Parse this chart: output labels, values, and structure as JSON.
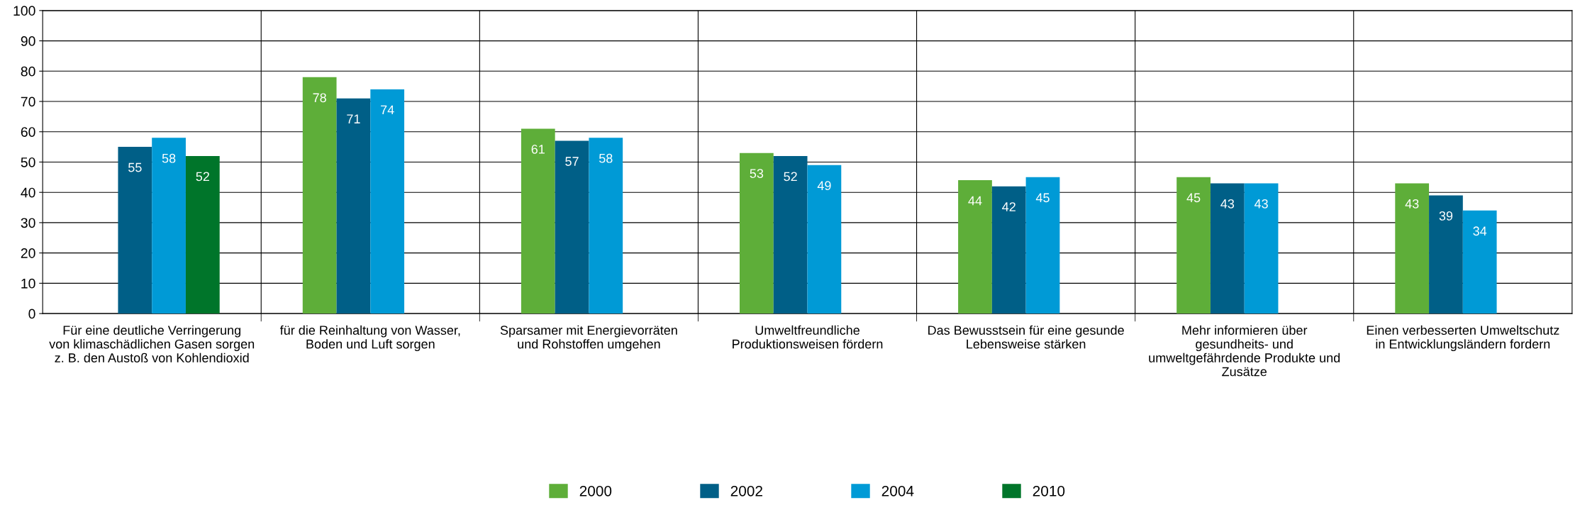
{
  "chart_data": {
    "type": "bar",
    "categories": [
      "Für eine deutliche Verringerung\nvon klimaschädlichen Gasen sorgen\nz. B. den Austoß von Kohlendioxid",
      "für die Reinhaltung von Wasser,\nBoden und Luft sorgen",
      "Sparsamer mit Energievorräten\nund Rohstoffen umgehen",
      "Umweltfreundliche\nProduktionsweisen fördern",
      "Das Bewusstsein für eine gesunde\nLebensweise stärken",
      "Mehr informieren über\ngesundheits- und\numweltgefährdende Produkte und\nZusätze",
      "Einen verbesserten Umweltschutz\nin Entwicklungsländern fordern"
    ],
    "series": [
      {
        "name": "2000",
        "color": "#5eae39",
        "values": [
          null,
          78,
          61,
          53,
          44,
          45,
          43
        ]
      },
      {
        "name": "2002",
        "color": "#005f87",
        "values": [
          55,
          71,
          57,
          52,
          42,
          43,
          39
        ]
      },
      {
        "name": "2004",
        "color": "#009ad6",
        "values": [
          58,
          74,
          58,
          49,
          45,
          43,
          34
        ]
      },
      {
        "name": "2010",
        "color": "#00752a",
        "values": [
          52,
          null,
          null,
          null,
          null,
          null,
          null
        ]
      }
    ],
    "ylim": [
      0,
      100
    ],
    "yticks": [
      0,
      10,
      20,
      30,
      40,
      50,
      60,
      70,
      80,
      90,
      100
    ],
    "grid": true,
    "legend": "bottom",
    "data_labels": true
  }
}
